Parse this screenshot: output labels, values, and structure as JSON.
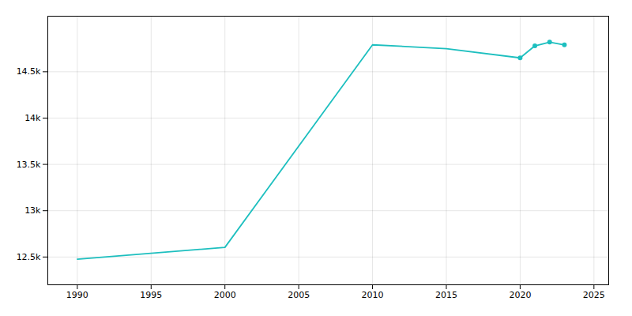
{
  "chart_data": {
    "type": "line",
    "x": [
      1990,
      2000,
      2010,
      2015,
      2020,
      2021,
      2022,
      2023
    ],
    "series": [
      {
        "type": "line",
        "color": "#1dbfbf",
        "values": [
          12477,
          12604,
          14791,
          14750,
          14650,
          14780,
          14820,
          14790
        ]
      },
      {
        "type": "scatter",
        "marker": "circle",
        "color": "#1dbfbf",
        "values": [
          null,
          null,
          null,
          null,
          14650,
          14780,
          14820,
          14790
        ]
      }
    ],
    "xlim": [
      1988,
      2026
    ],
    "xticks": [
      1990,
      1995,
      2000,
      2005,
      2010,
      2015,
      2020,
      2025
    ],
    "ylim": [
      12200,
      15100
    ],
    "yticks": [
      {
        "value": 12500,
        "label": "12.5k"
      },
      {
        "value": 13000,
        "label": "13k"
      },
      {
        "value": 13500,
        "label": "13.5k"
      },
      {
        "value": 14000,
        "label": "14k"
      },
      {
        "value": 14500,
        "label": "14.5k"
      }
    ],
    "grid": true
  }
}
